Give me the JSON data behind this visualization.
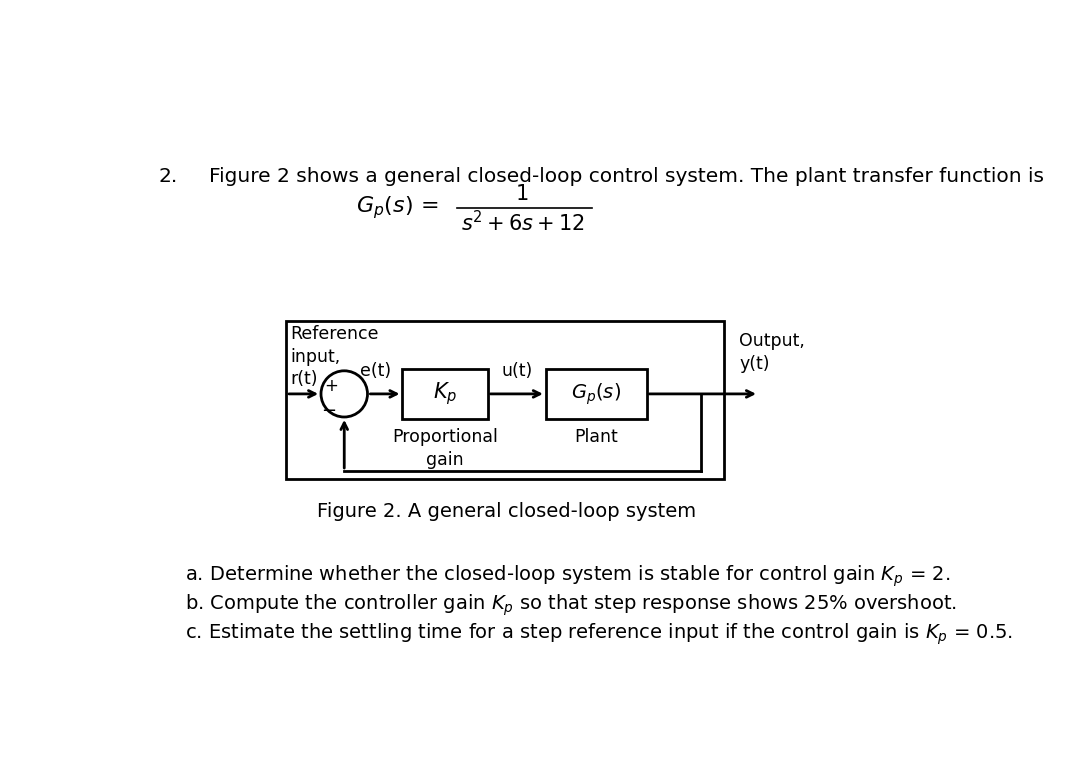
{
  "background_color": "#ffffff",
  "question_number": "2.",
  "intro_line1": "Figure 2 shows a general closed-loop control system. The plant transfer function is",
  "tf_numerator": "1",
  "tf_denominator": "s² + 6s + 12",
  "ref_input_label": "Reference\ninput,\nr(t)",
  "output_label": "Output,\ny(t)",
  "plus_label": "+",
  "minus_label": "−",
  "e_label": "e(t)",
  "u_label": "u(t)",
  "kp_label": "$K_p$",
  "gp_label": "$G_p(s)$",
  "prop_gain_label": "Proportional\ngain",
  "plant_label": "Plant",
  "figure_caption": "Figure 2. A general closed-loop system",
  "part_a": "a. Determine whether the closed-loop system is stable for control gain $K_p$ = 2.",
  "part_b": "b. Compute the controller gain $K_p$ so that step response shows 25% overshoot.",
  "part_c": "c. Estimate the settling time for a step reference input if the control gain is $K_p$ = 0.5.",
  "font_size_intro": 14.5,
  "font_size_labels": 12.5,
  "font_size_caption": 14,
  "font_size_parts": 14,
  "font_size_tf": 15,
  "font_size_box": 14,
  "font_family": "DejaVu Sans"
}
